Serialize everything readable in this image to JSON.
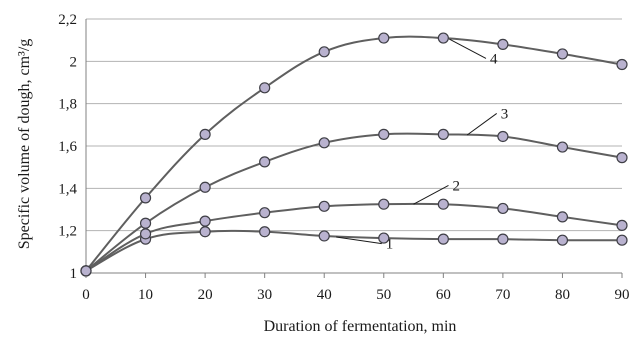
{
  "chart_data": {
    "type": "line",
    "title": "",
    "xlabel": "Duration of fermentation, min",
    "ylabel": "Specific volume of dough, cm³/g",
    "xlim": [
      0,
      90
    ],
    "ylim": [
      1,
      2.2
    ],
    "x_ticks": [
      0,
      10,
      20,
      30,
      40,
      50,
      60,
      70,
      80,
      90
    ],
    "y_ticks": [
      {
        "value": 1,
        "label": "1"
      },
      {
        "value": 1.2,
        "label": "1,2"
      },
      {
        "value": 1.4,
        "label": "1,4"
      },
      {
        "value": 1.6,
        "label": "1,6"
      },
      {
        "value": 1.8,
        "label": "1,8"
      },
      {
        "value": 2,
        "label": "2"
      },
      {
        "value": 2.2,
        "label": "2,2"
      }
    ],
    "grid": "horizontal",
    "legend": "none",
    "colors": {
      "line": "#5f5f5f",
      "marker_fill": "#b9b2cf",
      "marker_stroke": "#3f3f46",
      "grid": "#b3b3b3"
    },
    "x": [
      0,
      10,
      20,
      30,
      40,
      50,
      60,
      70,
      80,
      90
    ],
    "series": [
      {
        "label": "1",
        "values": [
          1.01,
          1.16,
          1.195,
          1.195,
          1.175,
          1.165,
          1.16,
          1.16,
          1.155,
          1.155
        ],
        "label_at": {
          "x": 50,
          "y": 1.12
        },
        "leader_to": {
          "x": 42,
          "y": 1.17
        }
      },
      {
        "label": "2",
        "values": [
          1.01,
          1.185,
          1.245,
          1.285,
          1.315,
          1.325,
          1.325,
          1.305,
          1.265,
          1.225
        ],
        "label_at": {
          "x": 61.2,
          "y": 1.395
        },
        "leader_to": {
          "x": 55,
          "y": 1.325
        }
      },
      {
        "label": "3",
        "values": [
          1.01,
          1.235,
          1.405,
          1.525,
          1.615,
          1.655,
          1.655,
          1.645,
          1.595,
          1.545
        ],
        "label_at": {
          "x": 69.3,
          "y": 1.735
        },
        "leader_to": {
          "x": 64,
          "y": 1.652
        }
      },
      {
        "label": "4",
        "values": [
          1.01,
          1.355,
          1.655,
          1.875,
          2.045,
          2.11,
          2.11,
          2.08,
          2.035,
          1.985
        ],
        "label_at": {
          "x": 67.5,
          "y": 1.995
        },
        "leader_to": {
          "x": 61,
          "y": 2.105
        }
      }
    ]
  }
}
